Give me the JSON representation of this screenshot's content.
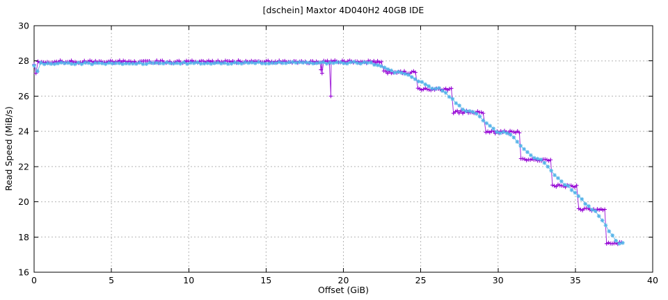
{
  "page": {
    "background": "#ffffff",
    "border_color": "#000000",
    "grid_color": "#b4b4b4"
  },
  "chart_data": {
    "type": "line",
    "title": "[dschein] Maxtor 4D040H2 40GB IDE",
    "xlabel": "Offset (GiB)",
    "ylabel": "Read Speed (MiB/s)",
    "xlim": [
      0,
      40
    ],
    "ylim": [
      16,
      30
    ],
    "xticks": [
      0,
      5,
      10,
      15,
      20,
      25,
      30,
      35,
      40
    ],
    "yticks": [
      16,
      18,
      20,
      22,
      24,
      26,
      28,
      30
    ],
    "grid": "dotted",
    "legend": "none",
    "series": [
      {
        "name": "magenta-plus-pass",
        "marker": "plus",
        "color": "#9400d3",
        "style": "step-plateaus",
        "noise": 0.08,
        "sample_interval": 0.12,
        "lead_in": [
          [
            0,
            27.8
          ],
          [
            0.12,
            27.3
          ]
        ],
        "plateaus": [
          [
            0.25,
            22.55,
            27.95
          ],
          [
            22.62,
            24.75,
            27.35
          ],
          [
            24.82,
            27.05,
            26.4
          ],
          [
            27.12,
            29.15,
            25.1
          ],
          [
            29.22,
            31.38,
            23.95
          ],
          [
            31.48,
            33.42,
            22.4
          ],
          [
            33.52,
            35.12,
            20.9
          ],
          [
            35.22,
            36.92,
            19.55
          ],
          [
            37.02,
            38.05,
            17.65
          ]
        ],
        "anomalies": [
          [
            18.55,
            27.5
          ],
          [
            18.62,
            27.3
          ],
          [
            19.19,
            26.0
          ]
        ]
      },
      {
        "name": "cyan-asterisk-pass",
        "marker": "asterisk",
        "color": "#56b4e9",
        "style": "polyline",
        "noise": 0.05,
        "sample_interval": 0.22,
        "control_points": [
          [
            0,
            27.75
          ],
          [
            0.1,
            27.1
          ],
          [
            0.4,
            27.85
          ],
          [
            21.8,
            27.9
          ],
          [
            23.4,
            27.35
          ],
          [
            24.0,
            27.3
          ],
          [
            25.7,
            26.45
          ],
          [
            26.3,
            26.4
          ],
          [
            27.9,
            25.15
          ],
          [
            28.5,
            25.05
          ],
          [
            30.0,
            23.95
          ],
          [
            30.7,
            23.9
          ],
          [
            32.3,
            22.45
          ],
          [
            32.8,
            22.35
          ],
          [
            34.3,
            20.95
          ],
          [
            34.5,
            20.9
          ],
          [
            36.0,
            19.6
          ],
          [
            36.3,
            19.5
          ],
          [
            37.7,
            17.68
          ],
          [
            38.2,
            17.65
          ]
        ]
      }
    ]
  }
}
